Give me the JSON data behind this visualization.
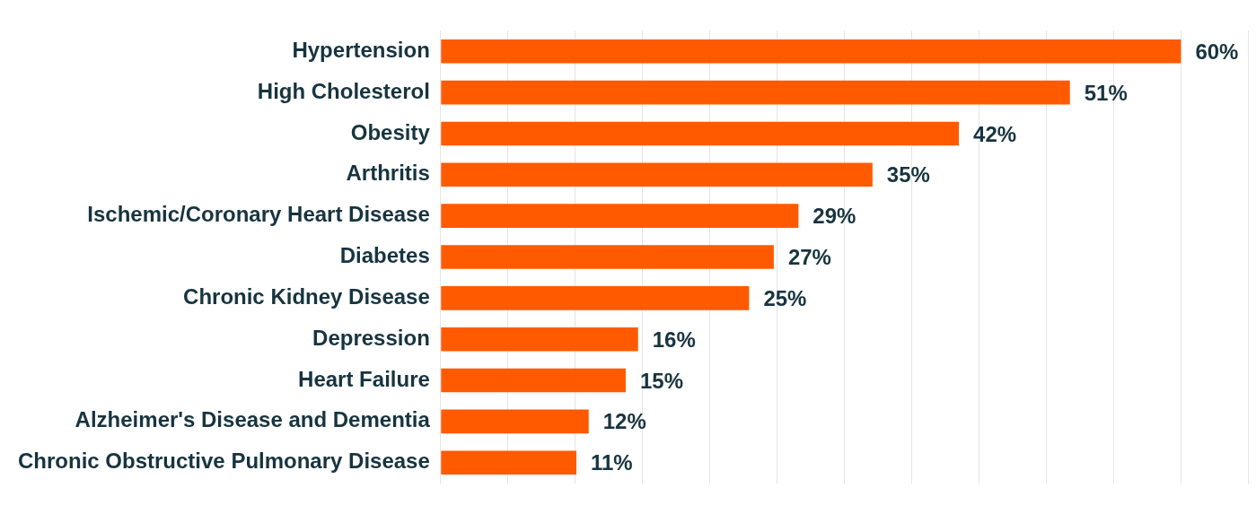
{
  "chart_data": {
    "type": "bar",
    "orientation": "horizontal",
    "categories": [
      "Hypertension",
      "High Cholesterol",
      "Obesity",
      "Arthritis",
      "Ischemic/Coronary Heart Disease",
      "Diabetes",
      "Chronic Kidney Disease",
      "Depression",
      "Heart Failure",
      "Alzheimer's Disease and Dementia",
      "Chronic Obstructive Pulmonary Disease"
    ],
    "values": [
      60,
      51,
      42,
      35,
      29,
      27,
      25,
      16,
      15,
      12,
      11
    ],
    "value_labels": [
      "60%",
      "51%",
      "42%",
      "35%",
      "29%",
      "27%",
      "25%",
      "16%",
      "15%",
      "12%",
      "11%"
    ],
    "color": "#ff5a00",
    "xlim": [
      0,
      65.5
    ],
    "xticks": [
      {
        "value": 0,
        "label": null
      },
      {
        "value": 5.45,
        "label": null
      },
      {
        "value": 10.91,
        "label": null
      },
      {
        "value": 16.36,
        "label": null
      },
      {
        "value": 21.82,
        "label": null
      },
      {
        "value": 27.27,
        "label": null
      },
      {
        "value": 32.73,
        "label": null
      },
      {
        "value": 38.18,
        "label": null
      },
      {
        "value": 43.64,
        "label": null
      },
      {
        "value": 49.09,
        "label": null
      },
      {
        "value": 54.55,
        "label": null
      },
      {
        "value": 60,
        "label": null
      },
      {
        "value": 65.45,
        "label": null
      }
    ],
    "grid": "x",
    "tick_labels": "y",
    "legend": false
  }
}
